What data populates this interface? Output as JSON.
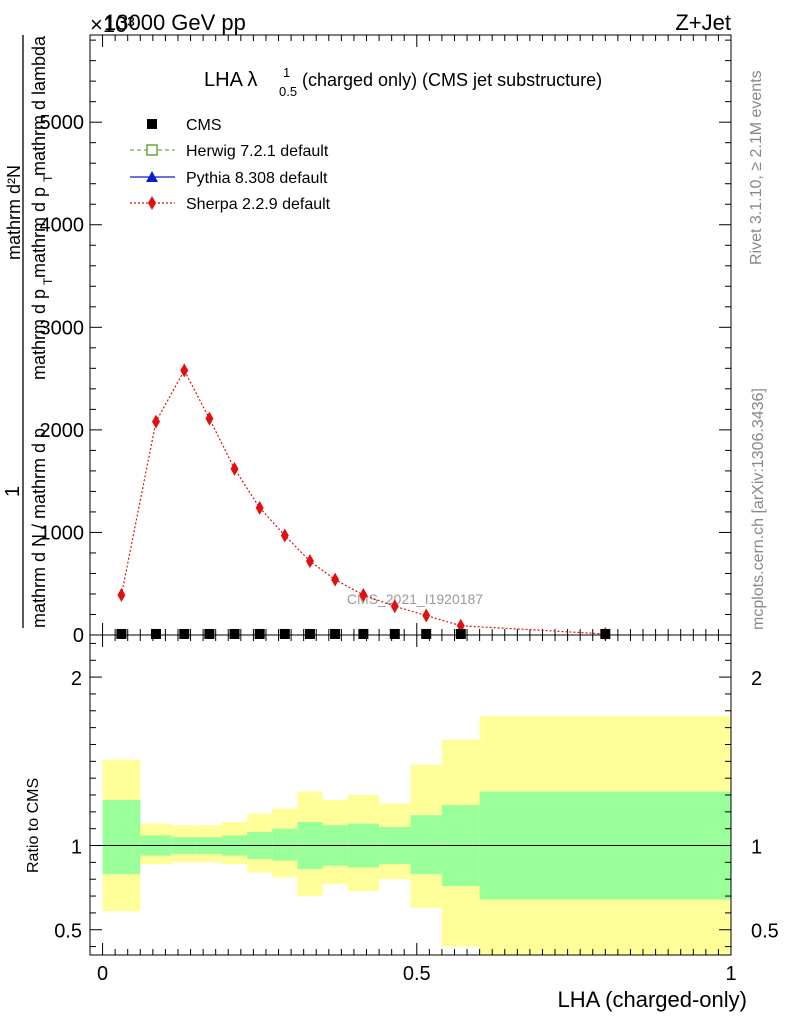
{
  "header": {
    "left": "13000 GeV pp",
    "right": "Z+Jet",
    "exponent": "×10³"
  },
  "chart_data": [
    {
      "type": "line",
      "title_main": "LHA λ",
      "title_sup": "1",
      "title_sub": "0.5",
      "title_rest": "(charged only) (CMS jet substructure)",
      "ylabel_num": "1",
      "ylabel_denom": "mathrm d N / mathrm d p",
      "ylabel_numer2": "mathrm d²N",
      "ylabel_denom2": "mathrm d p",
      "ylabel_denom2_sub": "T",
      "ylabel_denom2_rest": "mathrm d p",
      "ylabel_denom2_rest_sub": "T",
      "ylabel_denom2_tail": "mathrm d lambda",
      "xlim": [
        -0.02,
        1.0
      ],
      "ylim": [
        0,
        5.85
      ],
      "yticks": [
        {
          "v": 0,
          "label": "0"
        },
        {
          "v": 1,
          "label": "1000"
        },
        {
          "v": 2,
          "label": "2000"
        },
        {
          "v": 3,
          "label": "3000"
        },
        {
          "v": 4,
          "label": "4000"
        },
        {
          "v": 5,
          "label": "5000"
        }
      ],
      "watermark": "CMS_2021_I1920187",
      "legend": [
        {
          "name": "CMS",
          "color": "#000000",
          "marker": "square-filled",
          "dash": "none"
        },
        {
          "name": "Herwig 7.2.1 default",
          "color": "#4a9a1a",
          "marker": "square-open",
          "dash": "dashed"
        },
        {
          "name": "Pythia 8.308 default",
          "color": "#1020c0",
          "marker": "triangle",
          "dash": "solid"
        },
        {
          "name": "Sherpa 2.2.9 default",
          "color": "#e01010",
          "marker": "diamond",
          "dash": "dotted"
        }
      ],
      "x": [
        0.03,
        0.085,
        0.13,
        0.17,
        0.21,
        0.25,
        0.29,
        0.33,
        0.37,
        0.415,
        0.465,
        0.515,
        0.57,
        0.8
      ],
      "series": [
        {
          "name": "Sherpa 2.2.9 default",
          "values": [
            0.39,
            2.08,
            2.58,
            2.11,
            1.62,
            1.24,
            0.97,
            0.72,
            0.54,
            0.39,
            0.28,
            0.19,
            0.09,
            0.01
          ]
        },
        {
          "name": "CMS",
          "values": [
            0.01,
            0.01,
            0.01,
            0.01,
            0.01,
            0.01,
            0.01,
            0.01,
            0.01,
            0.01,
            0.01,
            0.01,
            0.01,
            0.01
          ]
        }
      ]
    },
    {
      "type": "area",
      "ylabel": "Ratio to CMS",
      "xlabel": "LHA (charged-only)",
      "xlim": [
        -0.02,
        1.0
      ],
      "ylim": [
        0.35,
        2.25
      ],
      "yticks": [
        {
          "v": 0.5,
          "label": "0.5"
        },
        {
          "v": 1,
          "label": "1"
        },
        {
          "v": 2,
          "label": "2"
        }
      ],
      "xticks": [
        {
          "v": 0,
          "label": "0"
        },
        {
          "v": 0.5,
          "label": "0.5"
        },
        {
          "v": 1,
          "label": "1"
        }
      ],
      "bands": [
        {
          "x0": 0.0,
          "x1": 0.06,
          "y_lo": 0.61,
          "y_hi": 1.51,
          "g_lo": 0.83,
          "g_hi": 1.27
        },
        {
          "x0": 0.06,
          "x1": 0.11,
          "y_lo": 0.89,
          "y_hi": 1.13,
          "g_lo": 0.94,
          "g_hi": 1.06
        },
        {
          "x0": 0.11,
          "x1": 0.15,
          "y_lo": 0.9,
          "y_hi": 1.12,
          "g_lo": 0.95,
          "g_hi": 1.05
        },
        {
          "x0": 0.15,
          "x1": 0.19,
          "y_lo": 0.9,
          "y_hi": 1.12,
          "g_lo": 0.95,
          "g_hi": 1.05
        },
        {
          "x0": 0.19,
          "x1": 0.23,
          "y_lo": 0.89,
          "y_hi": 1.14,
          "g_lo": 0.94,
          "g_hi": 1.06
        },
        {
          "x0": 0.23,
          "x1": 0.27,
          "y_lo": 0.84,
          "y_hi": 1.19,
          "g_lo": 0.92,
          "g_hi": 1.08
        },
        {
          "x0": 0.27,
          "x1": 0.31,
          "y_lo": 0.81,
          "y_hi": 1.22,
          "g_lo": 0.91,
          "g_hi": 1.1
        },
        {
          "x0": 0.31,
          "x1": 0.35,
          "y_lo": 0.7,
          "y_hi": 1.32,
          "g_lo": 0.86,
          "g_hi": 1.14
        },
        {
          "x0": 0.35,
          "x1": 0.39,
          "y_lo": 0.77,
          "y_hi": 1.27,
          "g_lo": 0.88,
          "g_hi": 1.12
        },
        {
          "x0": 0.39,
          "x1": 0.44,
          "y_lo": 0.73,
          "y_hi": 1.3,
          "g_lo": 0.87,
          "g_hi": 1.13
        },
        {
          "x0": 0.44,
          "x1": 0.49,
          "y_lo": 0.8,
          "y_hi": 1.25,
          "g_lo": 0.89,
          "g_hi": 1.11
        },
        {
          "x0": 0.49,
          "x1": 0.54,
          "y_lo": 0.63,
          "y_hi": 1.48,
          "g_lo": 0.83,
          "g_hi": 1.18
        },
        {
          "x0": 0.54,
          "x1": 0.6,
          "y_lo": 0.4,
          "y_hi": 1.63,
          "g_lo": 0.76,
          "g_hi": 1.24
        },
        {
          "x0": 0.6,
          "x1": 1.0,
          "y_lo": 0.35,
          "y_hi": 1.77,
          "g_lo": 0.68,
          "g_hi": 1.32
        }
      ]
    }
  ],
  "side_labels": {
    "rivet": "Rivet 3.1.10, ≥ 2.1M events",
    "mcplots": "mcplots.cern.ch [arXiv:1306.3436]"
  },
  "colors": {
    "yellow_band": "#ffff99",
    "green_band": "#99ff99"
  }
}
